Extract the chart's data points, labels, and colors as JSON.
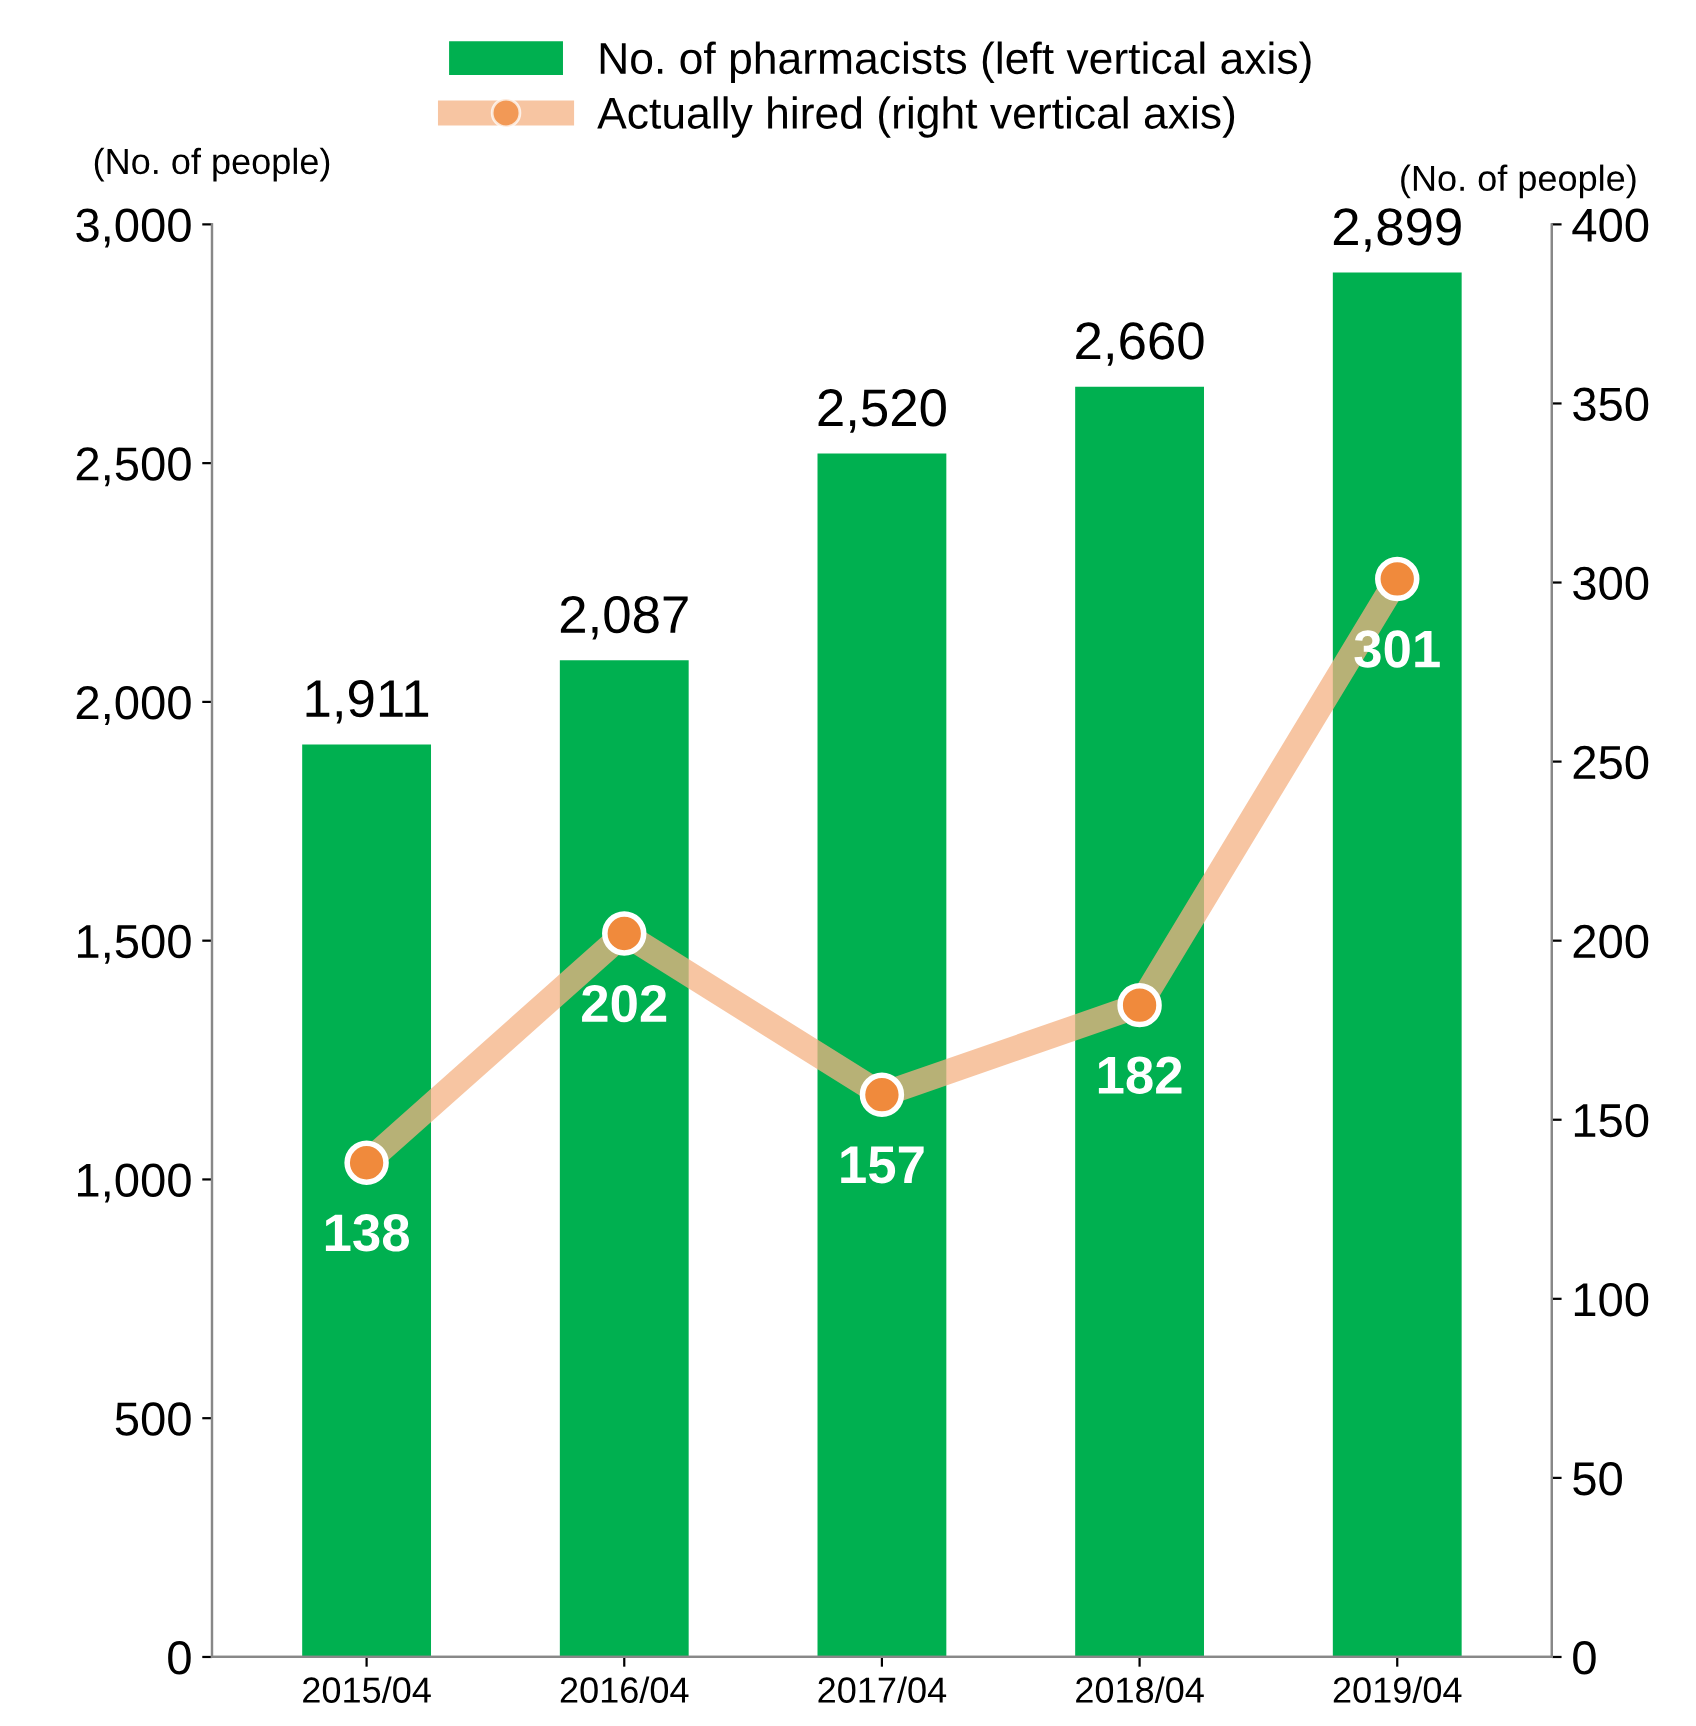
{
  "chart_data": {
    "type": "bar",
    "categories": [
      "2015/04",
      "2016/04",
      "2017/04",
      "2018/04",
      "2019/04"
    ],
    "series": [
      {
        "name": "No. of pharmacists (left vertical axis)",
        "color": "#00b050",
        "values": [
          1911,
          2087,
          2520,
          2660,
          2899
        ],
        "value_labels": [
          "1,911",
          "2,087",
          "2,520",
          "2,660",
          "2,899"
        ]
      },
      {
        "name": "Actually hired (right vertical axis)",
        "type": "line",
        "axis": "y2",
        "color": "#f08a3c",
        "values": [
          138,
          202,
          157,
          182,
          301
        ],
        "value_labels": [
          "138",
          "202",
          "157",
          "182",
          "301"
        ]
      }
    ],
    "ylabel": "(No. of people)",
    "y2label": "(No. of people)",
    "ylim": [
      0,
      3000
    ],
    "yticks": [
      {
        "value": 0,
        "label": "0"
      },
      {
        "value": 500,
        "label": "500"
      },
      {
        "value": 1000,
        "label": "1,000"
      },
      {
        "value": 1500,
        "label": "1,500"
      },
      {
        "value": 2000,
        "label": "2,000"
      },
      {
        "value": 2500,
        "label": "2,500"
      },
      {
        "value": 3000,
        "label": "3,000"
      }
    ],
    "y2lim": [
      0,
      400
    ],
    "y2ticks": [
      0,
      50,
      100,
      150,
      200,
      250,
      300,
      350,
      400
    ],
    "legend": "top",
    "marker": "circle"
  }
}
